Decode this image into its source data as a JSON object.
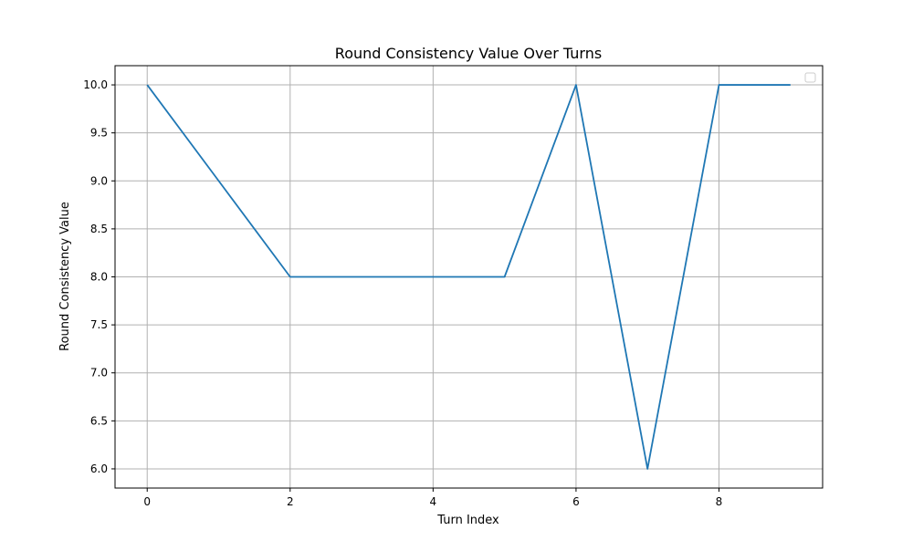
{
  "chart_data": {
    "type": "line",
    "title": "Round Consistency Value Over Turns",
    "xlabel": "Turn Index",
    "ylabel": "Round Consistency Value",
    "x": [
      0,
      1,
      2,
      3,
      4,
      5,
      6,
      7,
      8,
      9
    ],
    "series": [
      {
        "values": [
          10.0,
          9.0,
          8.0,
          8.0,
          8.0,
          8.0,
          10.0,
          6.0,
          10.0,
          10.0
        ],
        "color": "#1f77b4"
      }
    ],
    "xlim": [
      -0.45,
      9.45
    ],
    "ylim": [
      5.8,
      10.2
    ],
    "xticks": [
      0,
      2,
      4,
      6,
      8
    ],
    "yticks": [
      6.0,
      6.5,
      7.0,
      7.5,
      8.0,
      8.5,
      9.0,
      9.5,
      10.0
    ],
    "xtick_labels": [
      "0",
      "2",
      "4",
      "6",
      "8"
    ],
    "ytick_labels": [
      "6.0",
      "6.5",
      "7.0",
      "7.5",
      "8.0",
      "8.5",
      "9.0",
      "9.5",
      "10.0"
    ],
    "grid": true,
    "legend": {
      "placement": "upper-right",
      "entries": []
    }
  }
}
